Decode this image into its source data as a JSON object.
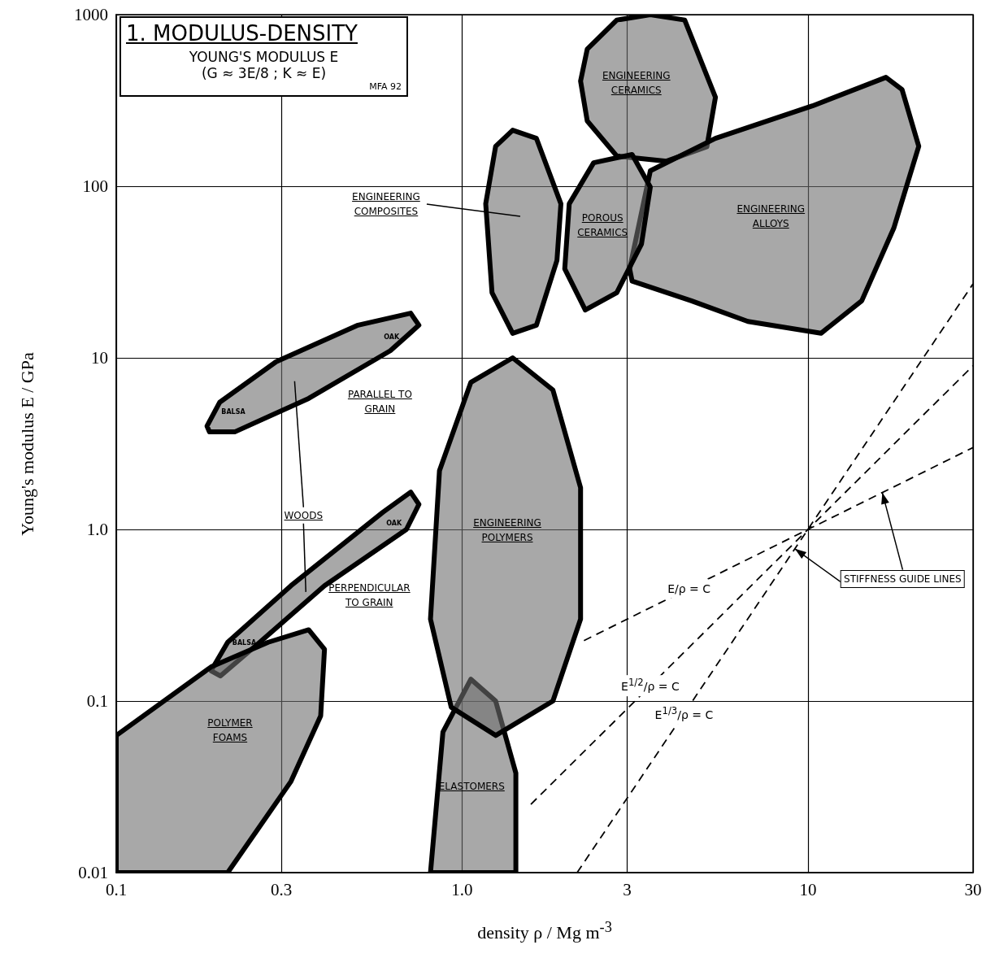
{
  "chart_data": {
    "type": "area",
    "title": "1. MODULUS-DENSITY",
    "subtitle": "YOUNG'S MODULUS E",
    "xlabel": "density ρ / Mg m$^{-3}$",
    "ylabel": "Young's modulus E / GPa",
    "log": "xy",
    "grid": true,
    "marker": "none",
    "xlim": [
      0.1,
      30
    ],
    "ylim": [
      0.01,
      1000
    ],
    "xticks": [
      0.1,
      0.3,
      {
        "value": 1,
        "label": "1.0"
      },
      3,
      10,
      30
    ],
    "yticks": [
      0.01,
      0.1,
      {
        "value": 1,
        "label": "1.0"
      },
      10,
      100,
      1000
    ],
    "series": [
      {
        "name": "ENGINEERING CERAMICS",
        "color": "#a8a8a8",
        "x": [
          2.3,
          2.8,
          3.5,
          4.4,
          5.4,
          5.1,
          3.9,
          2.8,
          2.3,
          2.2,
          2.3
        ],
        "values": [
          630,
          930,
          1000,
          930,
          330,
          170,
          140,
          150,
          240,
          410,
          630
        ]
      },
      {
        "name": "ENGINEERING ALLOYS",
        "color": "#a8a8a8",
        "x": [
          3.05,
          3.5,
          5.4,
          10.3,
          16.8,
          18.7,
          20.9,
          17.7,
          14.3,
          10.9,
          6.7,
          4.6,
          3.1,
          3.05
        ],
        "values": [
          33,
          123,
          190,
          294,
          431,
          366,
          171,
          57,
          21.5,
          13.9,
          16.3,
          21.5,
          28,
          33
        ]
      },
      {
        "name": "ENGINEERING COMPOSITES",
        "color": "#a8a8a8",
        "x": [
          1.4,
          1.64,
          1.93,
          1.88,
          1.64,
          1.4,
          1.22,
          1.17,
          1.25,
          1.4
        ],
        "values": [
          212,
          190,
          79,
          37,
          15.5,
          13.9,
          24,
          79,
          171,
          212
        ]
      },
      {
        "name": "POROUS CERAMICS",
        "color": "#a8a8a8",
        "x": [
          2.04,
          2.4,
          3.1,
          3.5,
          3.3,
          2.8,
          2.27,
          1.98,
          2.04
        ],
        "values": [
          79,
          137,
          153,
          99,
          46,
          24,
          19,
          33,
          79
        ]
      },
      {
        "name": "PARALLEL TO GRAIN",
        "color": "#a8a8a8",
        "x": [
          0.183,
          0.199,
          0.29,
          0.5,
          0.71,
          0.75,
          0.62,
          0.36,
          0.22,
          0.186,
          0.183
        ],
        "values": [
          4.0,
          5.5,
          9.5,
          15.5,
          18.2,
          15.5,
          11,
          5.8,
          3.7,
          3.7,
          4.0
        ]
      },
      {
        "name": "PERPENDICULAR TO GRAIN",
        "color": "#a8a8a8",
        "x": [
          0.188,
          0.21,
          0.32,
          0.59,
          0.71,
          0.75,
          0.69,
          0.4,
          0.26,
          0.2,
          0.188
        ],
        "values": [
          0.15,
          0.22,
          0.47,
          1.26,
          1.65,
          1.4,
          1.0,
          0.47,
          0.22,
          0.14,
          0.15
        ]
      },
      {
        "name": "POLYMER FOAMS",
        "color": "#a8a8a8",
        "x": [
          0.1,
          0.188,
          0.275,
          0.36,
          0.4,
          0.39,
          0.32,
          0.21,
          0.1,
          0.1
        ],
        "values": [
          0.063,
          0.158,
          0.22,
          0.26,
          0.2,
          0.082,
          0.034,
          0.01,
          0.01,
          0.063
        ]
      },
      {
        "name": "ELASTOMERS",
        "color": "#a8a8a8",
        "x": [
          0.81,
          0.88,
          1.06,
          1.25,
          1.43,
          1.43,
          0.81
        ],
        "values": [
          0.01,
          0.066,
          0.134,
          0.1,
          0.038,
          0.01,
          0.01
        ]
      },
      {
        "name": "ENGINEERING POLYMERS",
        "color": "#a8a8a8",
        "x": [
          1.4,
          1.83,
          2.2,
          2.2,
          1.83,
          1.25,
          0.93,
          0.81,
          0.86,
          1.06,
          1.4
        ],
        "values": [
          10,
          6.5,
          1.75,
          0.3,
          0.1,
          0.063,
          0.092,
          0.3,
          2.2,
          7.2,
          10
        ]
      },
      {
        "name": "E/ρ = C",
        "type": "line",
        "color": "#000000",
        "line_style": "dashed",
        "x": [
          2.25,
          30
        ],
        "values": [
          0.225,
          3
        ]
      },
      {
        "name": "E$^{1/2}$/ρ = C",
        "type": "line",
        "color": "#000000",
        "line_style": "dashed",
        "x": [
          1.58,
          30
        ],
        "values": [
          0.025,
          9
        ]
      },
      {
        "name": "E$^{1/3}$/ρ = C",
        "type": "line",
        "color": "#000000",
        "line_style": "dashed",
        "x": [
          2.15,
          30
        ],
        "values": [
          0.01,
          27
        ]
      }
    ],
    "annotations": [
      "(G ≈ 3E/8 ; K ≈ E)",
      "MFA 92",
      "WOODS",
      {
        "text": "STIFFNESS GUIDE LINES",
        "x": 16.4,
        "y": 1.64
      },
      "OAK",
      "BALSA",
      "OAK",
      "BALSA"
    ]
  }
}
